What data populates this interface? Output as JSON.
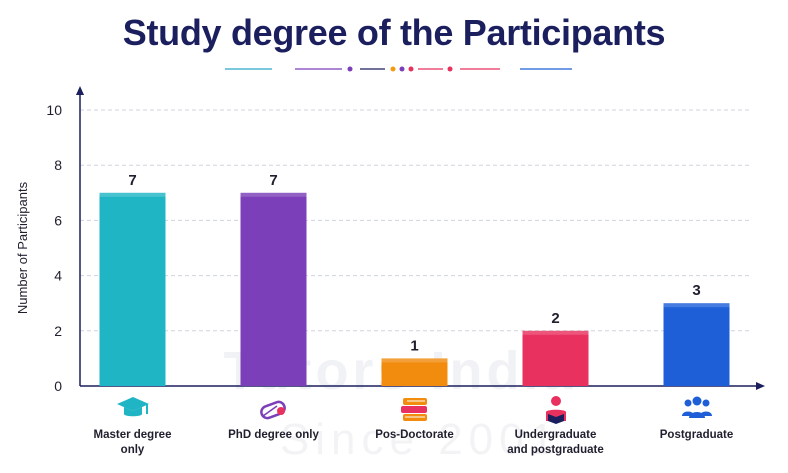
{
  "page": {
    "title": "Study degree of the Participants",
    "watermark": "Tutors India",
    "watermark_since": "Since 2001"
  },
  "colors": {
    "title": "#1b1f5e",
    "axis": "#1b1f5e",
    "grid": "#cfd3dc",
    "decor": [
      "#2aa7c9",
      "#7b3fb9",
      "#e8315f",
      "#f39c12",
      "#1e5fd8"
    ]
  },
  "chart_data": {
    "type": "bar",
    "categories": [
      "Master degree only",
      "PhD degree only",
      "Pos-Doctorate",
      "Undergraduate and postgraduate",
      "Postgraduate"
    ],
    "category_lines": [
      [
        "Master degree",
        "only"
      ],
      [
        "PhD degree only"
      ],
      [
        "Pos-Doctorate"
      ],
      [
        "Undergraduate",
        "and postgraduate"
      ],
      [
        "Postgraduate"
      ]
    ],
    "values": [
      7,
      7,
      1,
      2,
      3
    ],
    "data_labels": [
      "7",
      "7",
      "1",
      "2",
      "3"
    ],
    "bar_colors": [
      "#1fb5c4",
      "#7b3fb9",
      "#f28c0f",
      "#e8315f",
      "#1e5fd8"
    ],
    "icons": [
      "graduation-cap-icon",
      "diploma-scroll-icon",
      "books-stack-icon",
      "student-reading-icon",
      "group-people-icon"
    ],
    "title": "Study degree of the Participants",
    "xlabel": "",
    "ylabel": "Number of Participants",
    "ylim": [
      0,
      10
    ],
    "yticks": [
      "0",
      "2",
      "4",
      "6",
      "8",
      "10"
    ],
    "grid": true,
    "legend": "none"
  }
}
